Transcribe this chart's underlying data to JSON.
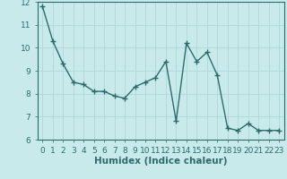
{
  "x": [
    0,
    1,
    2,
    3,
    4,
    5,
    6,
    7,
    8,
    9,
    10,
    11,
    12,
    13,
    14,
    15,
    16,
    17,
    18,
    19,
    20,
    21,
    22,
    23
  ],
  "y": [
    11.8,
    10.3,
    9.3,
    8.5,
    8.4,
    8.1,
    8.1,
    7.9,
    7.8,
    8.3,
    8.5,
    8.7,
    9.4,
    6.8,
    10.2,
    9.4,
    9.8,
    8.8,
    6.5,
    6.4,
    6.7,
    6.4,
    6.4,
    6.4
  ],
  "line_color": "#2d6b6b",
  "marker": "+",
  "marker_size": 4,
  "bg_color": "#c8eaea",
  "grid_color": "#b0d8d8",
  "xlabel": "Humidex (Indice chaleur)",
  "xlim": [
    -0.5,
    23.5
  ],
  "ylim": [
    6,
    12
  ],
  "yticks": [
    6,
    7,
    8,
    9,
    10,
    11,
    12
  ],
  "xticks": [
    0,
    1,
    2,
    3,
    4,
    5,
    6,
    7,
    8,
    9,
    10,
    11,
    12,
    13,
    14,
    15,
    16,
    17,
    18,
    19,
    20,
    21,
    22,
    23
  ],
  "tick_label_fontsize": 6.5,
  "xlabel_fontsize": 7.5,
  "line_width": 1.0
}
